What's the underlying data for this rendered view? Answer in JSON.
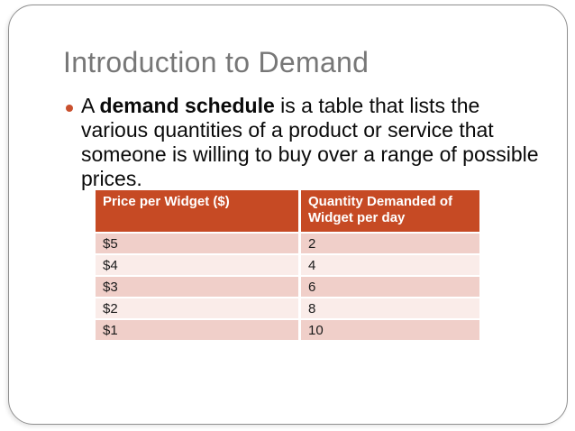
{
  "slide": {
    "title": "Introduction to Demand",
    "bullet": {
      "line1_prefix": "A ",
      "line1_bold": "demand schedule",
      "line1_rest": " is a table that lists the",
      "line2": "various quantities of a product or service that",
      "line3": "someone is willing to buy over a range of possible",
      "line4": "prices."
    },
    "table": {
      "columns": [
        "Price per Widget ($)",
        "Quantity Demanded of Widget per day"
      ],
      "rows": [
        [
          "$5",
          "2"
        ],
        [
          "$4",
          "4"
        ],
        [
          "$3",
          "6"
        ],
        [
          "$2",
          "8"
        ],
        [
          "$1",
          "10"
        ]
      ]
    },
    "colors": {
      "accent": "#C64A24",
      "bullet_dot": "#C9502E",
      "row_band": "#F0CFC9",
      "row_band_alt": "#FAECE9",
      "title_gray": "#777777",
      "border_gray": "#8F8F8F"
    }
  }
}
